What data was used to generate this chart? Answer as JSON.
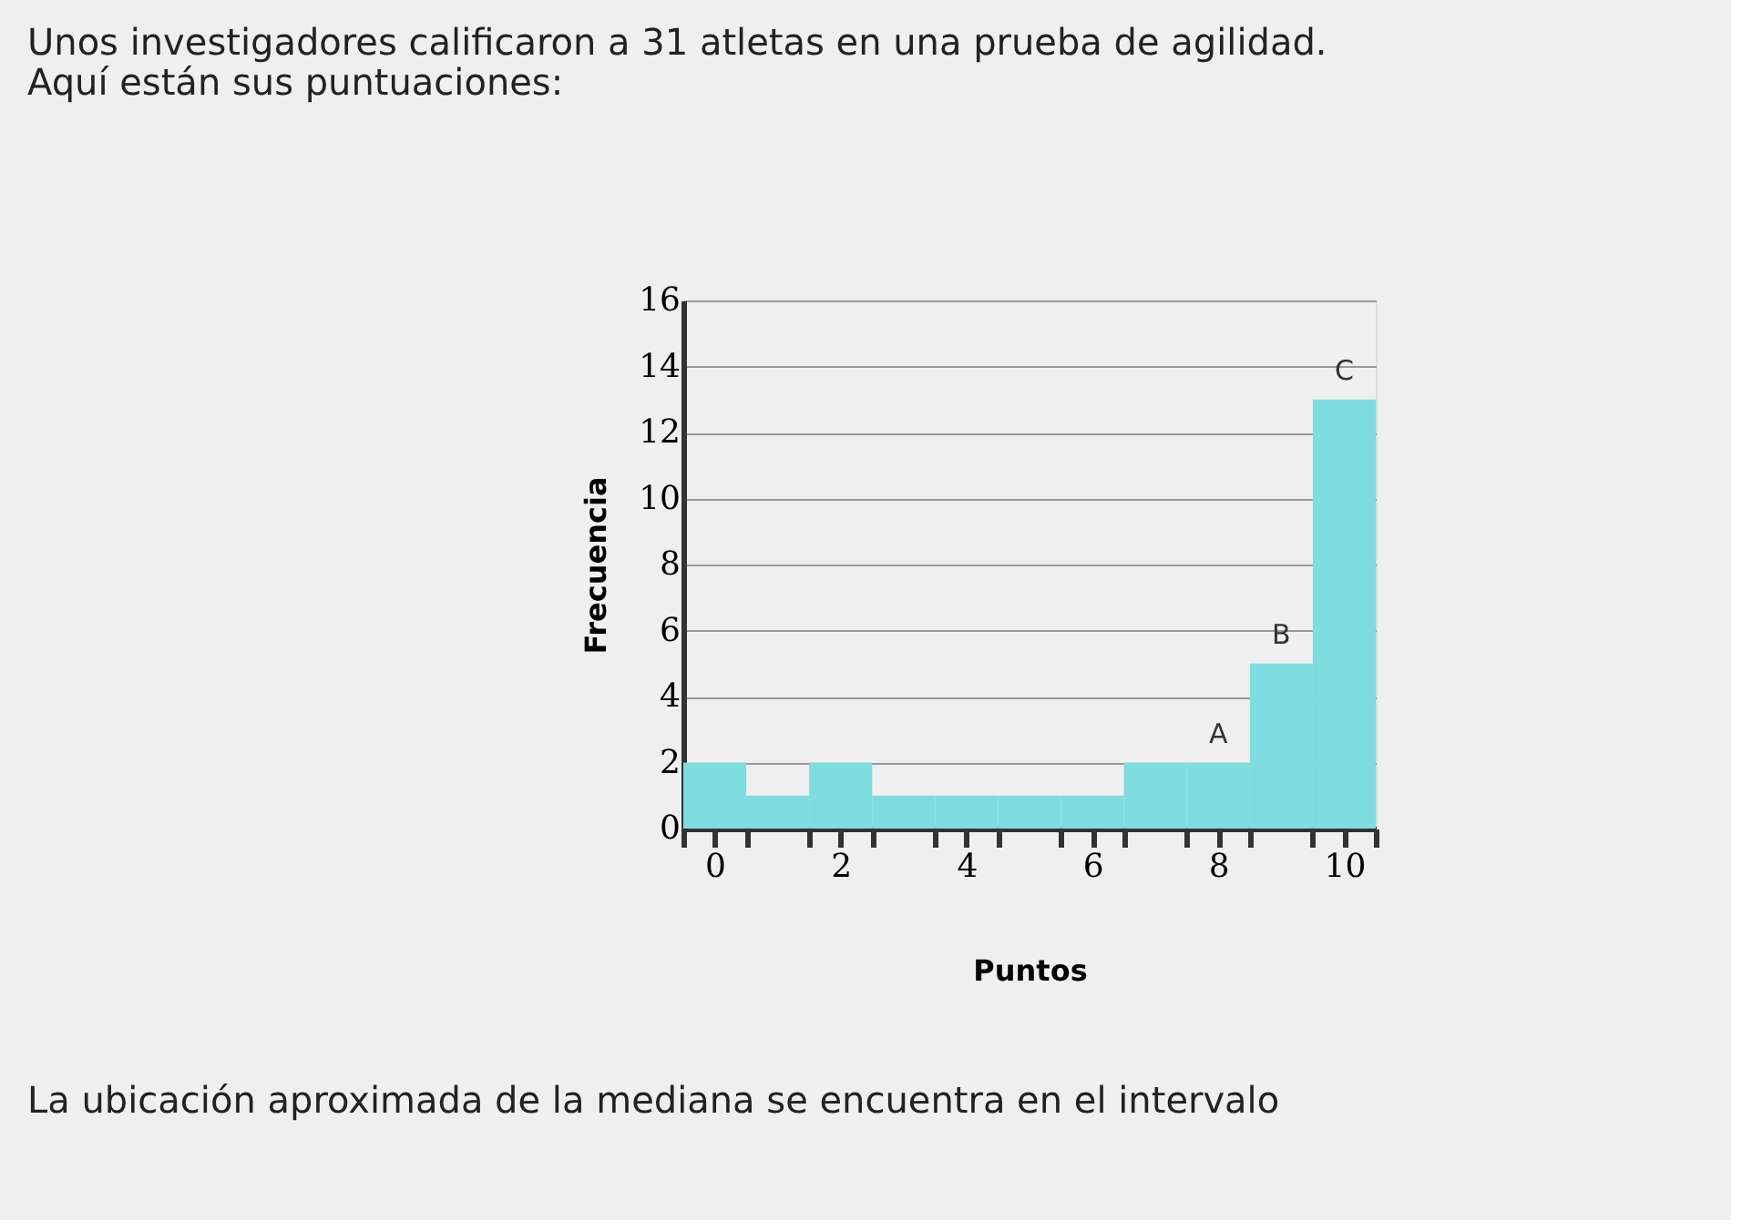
{
  "chart_data": {
    "type": "bar",
    "title": [
      "Unos investigadores calificaron a 31 atletas en una prueba de agilidad.",
      "Aquí están sus puntuaciones:"
    ],
    "xlabel": "Puntos",
    "ylabel": "Frecuencia",
    "x": [
      0,
      1,
      2,
      3,
      4,
      5,
      6,
      7,
      8,
      9,
      10
    ],
    "values": [
      2,
      1,
      2,
      1,
      1,
      1,
      1,
      2,
      2,
      5,
      13
    ],
    "color": "#7fdcdf",
    "xlim": [
      -0.5,
      10.5
    ],
    "xticks": [
      {
        "value": -0.5,
        "label": null
      },
      0,
      {
        "value": 0.5,
        "label": null
      },
      {
        "value": 1.5,
        "label": null
      },
      2,
      {
        "value": 2.5,
        "label": null
      },
      {
        "value": 3.5,
        "label": null
      },
      4,
      {
        "value": 4.5,
        "label": null
      },
      {
        "value": 5.5,
        "label": null
      },
      6,
      {
        "value": 6.5,
        "label": null
      },
      {
        "value": 7.5,
        "label": null
      },
      8,
      {
        "value": 8.5,
        "label": null
      },
      {
        "value": 9.5,
        "label": null
      },
      10,
      {
        "value": 10.5,
        "label": null
      }
    ],
    "ylim": [
      0,
      16
    ],
    "yticks": [
      0,
      2,
      4,
      6,
      8,
      10,
      12,
      14,
      16
    ],
    "grid": "y",
    "annotations": [
      {
        "text": "A",
        "x": 8,
        "y": 2
      },
      {
        "text": "B",
        "x": 9,
        "y": 5
      },
      {
        "text": "C",
        "x": 10,
        "y": 13
      },
      "La ubicación aproximada de la mediana se encuentra en el intervalo"
    ]
  }
}
